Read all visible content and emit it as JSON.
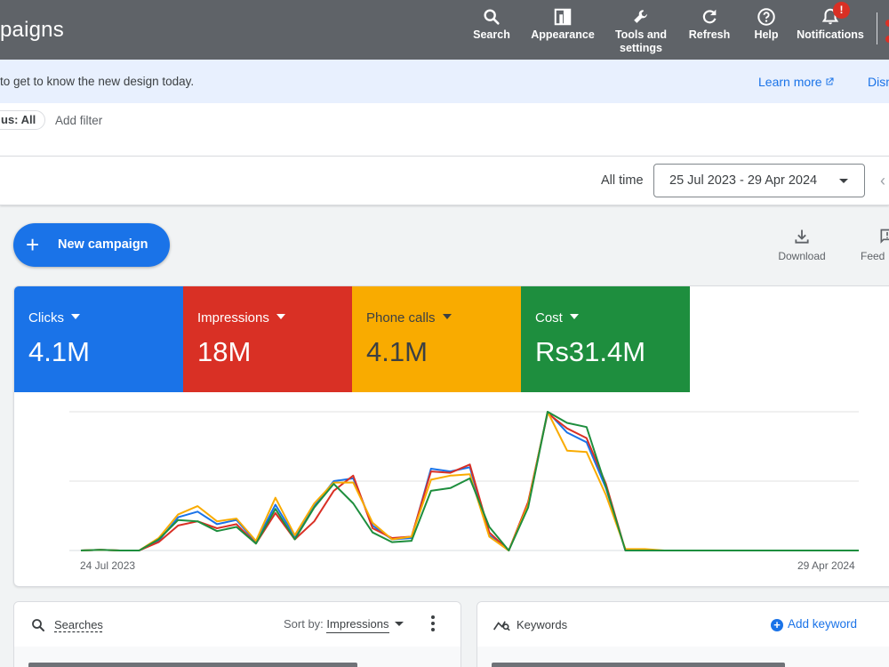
{
  "header": {
    "title": "paigns",
    "tools": [
      {
        "label": "Search",
        "icon": "search-icon"
      },
      {
        "label": "Appearance",
        "icon": "appearance-icon"
      },
      {
        "label": "Tools and settings",
        "icon": "wrench-icon"
      },
      {
        "label": "Refresh",
        "icon": "refresh-icon"
      },
      {
        "label": "Help",
        "icon": "help-icon"
      },
      {
        "label": "Notifications",
        "icon": "bell-icon",
        "badge": "!"
      }
    ]
  },
  "banner": {
    "message": "to get to know the new design today.",
    "learn_more": "Learn more",
    "dismiss": "Dism"
  },
  "filters": {
    "status_chip": "us: All",
    "add_filter": "Add filter"
  },
  "date": {
    "label": "All time",
    "range": "25 Jul 2023 - 29 Apr 2024"
  },
  "actions": {
    "new_campaign": "New campaign",
    "download": "Download",
    "feedback": "Feed"
  },
  "metrics": [
    {
      "name": "Clicks",
      "value": "4.1M",
      "color": "#1a73e8"
    },
    {
      "name": "Impressions",
      "value": "18M",
      "color": "#d93025"
    },
    {
      "name": "Phone calls",
      "value": "4.1M",
      "color": "#f9ab00"
    },
    {
      "name": "Cost",
      "value": "Rs31.4M",
      "color": "#1e8e3e"
    }
  ],
  "chart_data": {
    "type": "line",
    "x_start_label": "24 Jul 2023",
    "x_end_label": "29 Apr 2024",
    "grid": true,
    "series": [
      {
        "name": "Clicks",
        "color": "#1a73e8",
        "values": [
          0,
          0.5,
          0,
          0,
          7,
          24,
          28,
          19,
          22,
          6,
          33,
          10,
          32,
          50,
          52,
          18,
          8,
          9,
          59,
          57,
          60,
          11,
          0,
          34,
          100,
          85,
          78,
          45,
          0,
          0,
          0,
          0,
          0,
          0,
          0,
          0,
          0,
          0,
          0,
          0,
          0
        ]
      },
      {
        "name": "Impressions",
        "color": "#d93025",
        "values": [
          0,
          0.5,
          0,
          0,
          6,
          18,
          21,
          16,
          19,
          5,
          27,
          8,
          21,
          43,
          54,
          16,
          9,
          10,
          57,
          56,
          62,
          13,
          0,
          35,
          99,
          88,
          81,
          48,
          0,
          0,
          0,
          0,
          0,
          0,
          0,
          0,
          0,
          0,
          0,
          0,
          0
        ]
      },
      {
        "name": "Phone calls",
        "color": "#f9ab00",
        "values": [
          0,
          0.5,
          0,
          0,
          9,
          26,
          32,
          21,
          23,
          7,
          38,
          11,
          34,
          49,
          49,
          20,
          8,
          10,
          51,
          54,
          55,
          10,
          0,
          33,
          100,
          72,
          71,
          40,
          1,
          1,
          0,
          0,
          0,
          0,
          0,
          0,
          0,
          0,
          0,
          0,
          0
        ]
      },
      {
        "name": "Cost",
        "color": "#1e8e3e",
        "values": [
          0,
          0.5,
          0,
          0,
          8,
          22,
          21,
          14,
          17,
          5,
          30,
          8,
          31,
          48,
          34,
          13,
          6,
          7,
          43,
          45,
          52,
          17,
          0,
          31,
          100,
          92,
          89,
          46,
          0,
          0,
          0,
          0,
          0,
          0,
          0,
          0,
          0,
          0,
          0,
          0,
          0
        ]
      }
    ]
  },
  "searches": {
    "title": "Searches",
    "sort_label": "Sort by:",
    "sort_value": "Impressions"
  },
  "keywords": {
    "title": "Keywords",
    "add": "Add keyword"
  }
}
